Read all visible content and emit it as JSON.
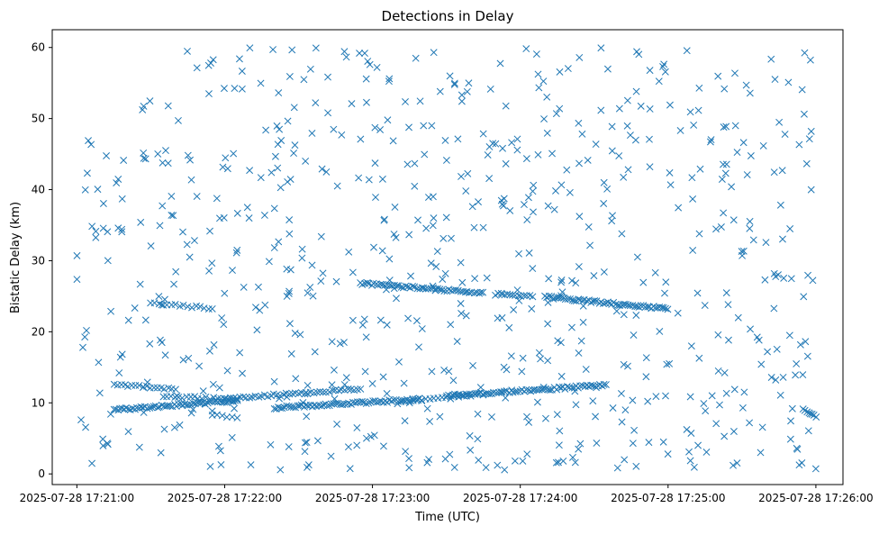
{
  "chart_data": {
    "type": "scatter",
    "title": "Detections in Delay",
    "xlabel": "Time (UTC)",
    "ylabel": "Bistatic Delay (km)",
    "marker": "x",
    "color": "#1f77b4",
    "xlim": [
      "2025-07-28 17:20:50",
      "2025-07-28 17:26:11"
    ],
    "ylim": [
      -1.5,
      62.5
    ],
    "x_ticks": [
      "2025-07-28 17:21:00",
      "2025-07-28 17:22:00",
      "2025-07-28 17:23:00",
      "2025-07-28 17:24:00",
      "2025-07-28 17:25:00",
      "2025-07-28 17:26:00"
    ],
    "y_ticks": [
      "0",
      "10",
      "20",
      "30",
      "40",
      "50",
      "60"
    ],
    "grid": false,
    "legend": "none",
    "tracks": [
      {
        "start": [
          "2025-07-28 17:21:15",
          9.0
        ],
        "end": [
          "2025-07-28 17:22:05",
          10.3
        ],
        "points": 60
      },
      {
        "start": [
          "2025-07-28 17:22:20",
          9.3
        ],
        "end": [
          "2025-07-28 17:23:20",
          10.5
        ],
        "points": 70
      },
      {
        "start": [
          "2025-07-28 17:23:30",
          11.0
        ],
        "end": [
          "2025-07-28 17:24:35",
          12.5
        ],
        "points": 75
      },
      {
        "start": [
          "2025-07-28 17:22:00",
          10.6
        ],
        "end": [
          "2025-07-28 17:22:55",
          11.9
        ],
        "points": 45
      },
      {
        "start": [
          "2025-07-28 17:21:15",
          12.5
        ],
        "end": [
          "2025-07-28 17:21:40",
          12.0
        ],
        "points": 18
      },
      {
        "start": [
          "2025-07-28 17:21:35",
          11.0
        ],
        "end": [
          "2025-07-28 17:22:05",
          10.4
        ],
        "points": 20
      },
      {
        "start": [
          "2025-07-28 17:21:55",
          8.3
        ],
        "end": [
          "2025-07-28 17:22:05",
          8.0
        ],
        "points": 6
      },
      {
        "start": [
          "2025-07-28 17:21:30",
          24.0
        ],
        "end": [
          "2025-07-28 17:21:55",
          23.3
        ],
        "points": 16
      },
      {
        "start": [
          "2025-07-28 17:22:55",
          26.8
        ],
        "end": [
          "2025-07-28 17:23:45",
          25.5
        ],
        "points": 55
      },
      {
        "start": [
          "2025-07-28 17:23:50",
          25.3
        ],
        "end": [
          "2025-07-28 17:24:05",
          25.0
        ],
        "points": 14
      },
      {
        "start": [
          "2025-07-28 17:24:10",
          24.9
        ],
        "end": [
          "2025-07-28 17:25:00",
          23.2
        ],
        "points": 60
      },
      {
        "start": [
          "2025-07-28 17:23:10",
          10.0
        ],
        "end": [
          "2025-07-28 17:23:45",
          11.2
        ],
        "points": 22
      },
      {
        "start": [
          "2025-07-28 17:25:55",
          9.0
        ],
        "end": [
          "2025-07-28 17:26:00",
          8.0
        ],
        "points": 8
      }
    ],
    "clutter": {
      "count": 700,
      "x_range": [
        "2025-07-28 17:21:00",
        "2025-07-28 17:26:00"
      ],
      "y_range": [
        0.5,
        60
      ]
    }
  }
}
